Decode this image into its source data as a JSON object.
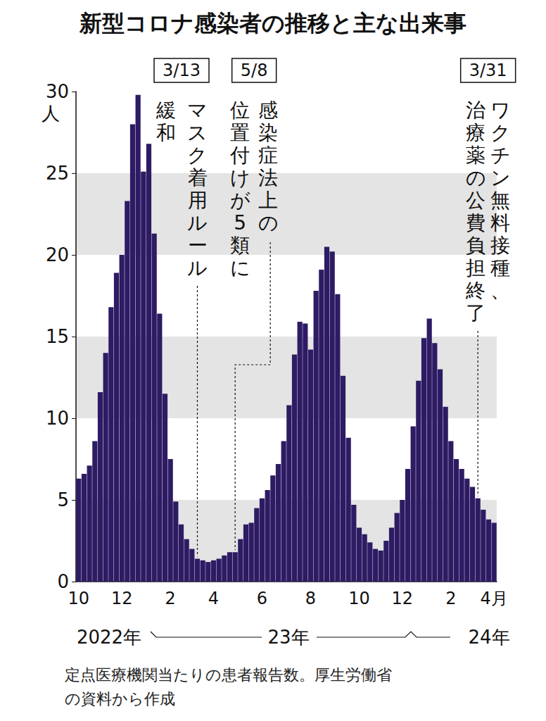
{
  "chart_data": {
    "type": "bar",
    "title": "新型コロナ感染者の推移と主な出来事",
    "y_label": "人",
    "categories": [
      "10",
      null,
      null,
      null,
      null,
      null,
      null,
      null,
      "12",
      null,
      null,
      null,
      null,
      null,
      null,
      null,
      null,
      "2",
      null,
      null,
      null,
      null,
      null,
      null,
      null,
      "4",
      null,
      null,
      null,
      null,
      null,
      null,
      null,
      null,
      "6",
      null,
      null,
      null,
      null,
      null,
      null,
      null,
      null,
      "8",
      null,
      null,
      null,
      null,
      null,
      null,
      null,
      null,
      "10",
      null,
      null,
      null,
      null,
      null,
      null,
      null,
      "12",
      null,
      null,
      null,
      null,
      null,
      null,
      null,
      null,
      "2",
      null,
      null,
      null,
      null,
      null,
      null,
      null,
      "4月"
    ],
    "values": [
      6.3,
      6.6,
      7.1,
      8.6,
      11.6,
      14.0,
      16.8,
      18.9,
      20.0,
      23.3,
      28.0,
      29.8,
      25.1,
      26.8,
      21.3,
      16.4,
      11.5,
      7.5,
      4.9,
      3.5,
      2.6,
      2.0,
      1.4,
      1.3,
      1.2,
      1.3,
      1.4,
      1.6,
      1.8,
      1.8,
      2.6,
      3.5,
      3.6,
      4.5,
      5.1,
      5.6,
      6.5,
      7.2,
      8.6,
      10.8,
      13.9,
      15.9,
      15.8,
      14.2,
      17.8,
      19.1,
      20.5,
      20.2,
      17.6,
      12.6,
      8.8,
      4.7,
      3.3,
      2.9,
      2.4,
      2.0,
      1.9,
      2.5,
      3.3,
      4.2,
      5.0,
      6.9,
      9.5,
      12.3,
      14.9,
      16.1,
      14.6,
      13.0,
      10.7,
      8.6,
      7.5,
      6.9,
      6.3,
      5.8,
      5.1,
      4.4,
      3.8,
      3.6
    ],
    "x_group_labels": [
      "2022年",
      "23年",
      "24年"
    ],
    "color": "#2d1b64",
    "ylim": [
      0,
      30
    ],
    "yticks": [
      0,
      5,
      10,
      15,
      20,
      25,
      30
    ],
    "grid": true,
    "annotations": [
      {
        "date": "3/13",
        "text": [
          "マスク着用ルール",
          "緩和"
        ],
        "category_index": 22
      },
      {
        "date": "5/8",
        "text": [
          "感染症法上の",
          "位置付けが5類に"
        ],
        "category_index": 29
      },
      {
        "date": "3/31",
        "text": [
          "ワクチン無料接種、",
          "治療薬の公費負担終了"
        ],
        "category_index": 74
      }
    ],
    "note": [
      "定点医療機関当たりの患者報告数。厚生労働省",
      "の資料から作成"
    ]
  }
}
